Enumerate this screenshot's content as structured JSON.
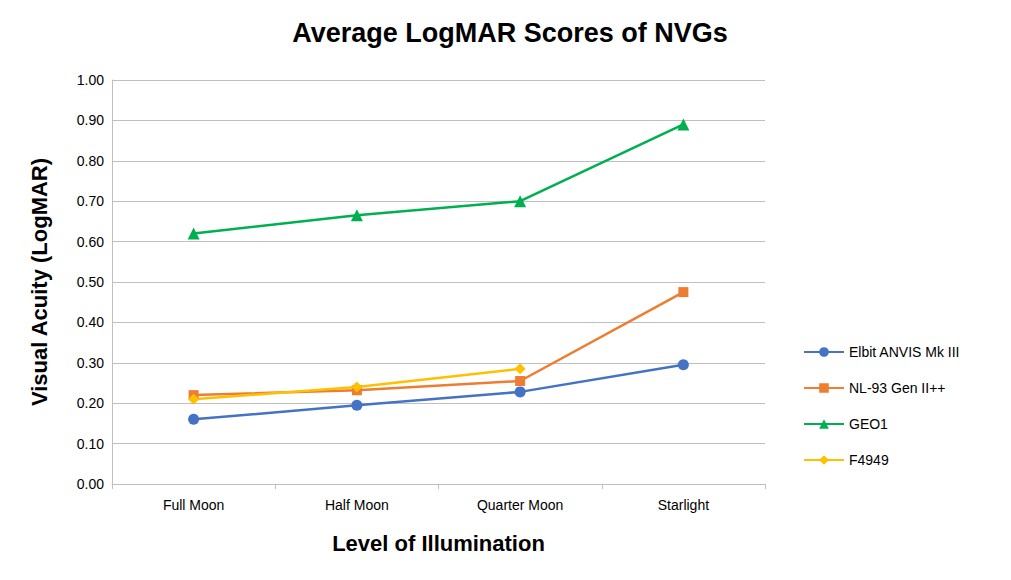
{
  "chart_data": {
    "type": "line",
    "title": "Average LogMAR Scores of NVGs",
    "x_label": "Level of Illumination",
    "y_label": "Visual Acuity (LogMAR)",
    "categories": [
      "Full Moon",
      "Half Moon",
      "Quarter Moon",
      "Starlight"
    ],
    "series": [
      {
        "name": "Elbit ANVIS Mk III",
        "color": "#4472c4",
        "marker": "circle",
        "values": [
          0.16,
          0.195,
          0.228,
          0.295
        ]
      },
      {
        "name": "NL-93 Gen II++",
        "color": "#ed7d31",
        "marker": "square",
        "values": [
          0.22,
          0.232,
          0.255,
          0.475
        ]
      },
      {
        "name": "GEO1",
        "color": "#00b050",
        "marker": "triangle",
        "values": [
          0.62,
          0.665,
          0.7,
          0.89
        ]
      },
      {
        "name": "F4949",
        "color": "#ffc000",
        "marker": "diamond",
        "values": [
          0.21,
          0.24,
          0.285,
          null
        ]
      }
    ],
    "ylim": [
      0,
      1
    ],
    "yticks": [
      {
        "value": 0,
        "label": "0.00"
      },
      {
        "value": 0.1,
        "label": "0.10"
      },
      {
        "value": 0.2,
        "label": "0.20"
      },
      {
        "value": 0.3,
        "label": "0.30"
      },
      {
        "value": 0.4,
        "label": "0.40"
      },
      {
        "value": 0.5,
        "label": "0.50"
      },
      {
        "value": 0.6,
        "label": "0.60"
      },
      {
        "value": 0.7,
        "label": "0.70"
      },
      {
        "value": 0.8,
        "label": "0.80"
      },
      {
        "value": 0.9,
        "label": "0.90"
      },
      {
        "value": 1,
        "label": "1.00"
      }
    ],
    "grid": true,
    "legend": "right"
  }
}
